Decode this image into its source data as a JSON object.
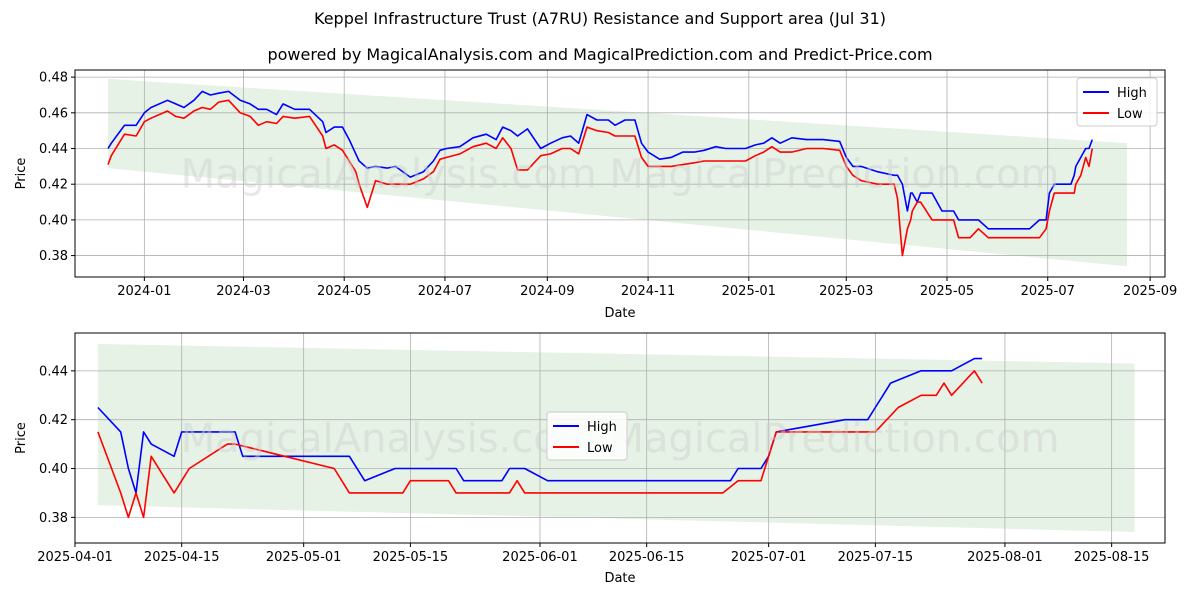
{
  "title": "Keppel Infrastructure Trust (A7RU) Resistance and Support area (Jul 31)",
  "subtitle": "powered by MagicalAnalysis.com and MagicalPrediction.com and Predict-Price.com",
  "watermark": "MagicalAnalysis.com    MagicalPrediction.com",
  "colors": {
    "high": "#0000ff",
    "low": "#ff0000",
    "band": "#cfe8cf"
  },
  "chart_data": [
    {
      "type": "line",
      "xlabel": "Date",
      "ylabel": "Price",
      "xlim": [
        "2023-11-20",
        "2025-09-10"
      ],
      "ylim": [
        0.368,
        0.484
      ],
      "xticks": [
        "2024-01-01",
        "2024-03-01",
        "2024-05-01",
        "2024-07-01",
        "2024-09-01",
        "2024-11-01",
        "2025-01-01",
        "2025-03-01",
        "2025-05-01",
        "2025-07-01",
        "2025-09-01"
      ],
      "xtick_labels": [
        "2024-01",
        "2024-03",
        "2024-05",
        "2024-07",
        "2024-09",
        "2024-11",
        "2025-01",
        "2025-03",
        "2025-05",
        "2025-07",
        "2025-09"
      ],
      "yticks": [
        0.38,
        0.4,
        0.42,
        0.44,
        0.46,
        0.48
      ],
      "ytick_labels": [
        "0.38",
        "0.40",
        "0.42",
        "0.44",
        "0.46",
        "0.48"
      ],
      "grid": true,
      "legend_position": "top-right",
      "band": {
        "x": [
          "2023-12-10",
          "2025-08-18"
        ],
        "upper": [
          0.479,
          0.443
        ],
        "lower": [
          0.429,
          0.374
        ]
      },
      "series": [
        {
          "name": "High",
          "x": [
            "2023-12-10",
            "2023-12-12",
            "2023-12-20",
            "2023-12-27",
            "2024-01-01",
            "2024-01-05",
            "2024-01-15",
            "2024-01-20",
            "2024-01-25",
            "2024-01-31",
            "2024-02-05",
            "2024-02-10",
            "2024-02-15",
            "2024-02-21",
            "2024-02-28",
            "2024-03-05",
            "2024-03-10",
            "2024-03-15",
            "2024-03-21",
            "2024-03-25",
            "2024-04-01",
            "2024-04-10",
            "2024-04-18",
            "2024-04-20",
            "2024-04-25",
            "2024-04-30",
            "2024-05-04",
            "2024-05-08",
            "2024-05-10",
            "2024-05-15",
            "2024-05-20",
            "2024-05-27",
            "2024-06-01",
            "2024-06-10",
            "2024-06-18",
            "2024-06-24",
            "2024-06-28",
            "2024-07-02",
            "2024-07-10",
            "2024-07-18",
            "2024-07-26",
            "2024-08-01",
            "2024-08-05",
            "2024-08-10",
            "2024-08-14",
            "2024-08-20",
            "2024-08-28",
            "2024-09-03",
            "2024-09-10",
            "2024-09-15",
            "2024-09-20",
            "2024-09-25",
            "2024-10-01",
            "2024-10-08",
            "2024-10-12",
            "2024-10-18",
            "2024-10-24",
            "2024-10-28",
            "2024-11-01",
            "2024-11-08",
            "2024-11-15",
            "2024-11-22",
            "2024-11-29",
            "2024-12-05",
            "2024-12-12",
            "2024-12-18",
            "2024-12-24",
            "2024-12-30",
            "2025-01-05",
            "2025-01-10",
            "2025-01-15",
            "2025-01-20",
            "2025-01-27",
            "2025-02-05",
            "2025-02-15",
            "2025-02-25",
            "2025-03-01",
            "2025-03-05",
            "2025-03-10",
            "2025-03-20",
            "2025-03-30",
            "2025-04-01",
            "2025-04-04",
            "2025-04-07",
            "2025-04-09",
            "2025-04-10",
            "2025-04-13",
            "2025-04-15",
            "2025-04-22",
            "2025-04-28",
            "2025-05-05",
            "2025-05-08",
            "2025-05-15",
            "2025-05-20",
            "2025-05-26",
            "2025-06-01",
            "2025-06-10",
            "2025-06-20",
            "2025-06-26",
            "2025-06-30",
            "2025-07-02",
            "2025-07-05",
            "2025-07-15",
            "2025-07-17",
            "2025-07-18",
            "2025-07-21",
            "2025-07-24",
            "2025-07-26",
            "2025-07-28"
          ],
          "values": [
            0.44,
            0.443,
            0.453,
            0.453,
            0.46,
            0.463,
            0.467,
            0.465,
            0.463,
            0.467,
            0.472,
            0.47,
            0.471,
            0.472,
            0.467,
            0.465,
            0.462,
            0.462,
            0.459,
            0.465,
            0.462,
            0.462,
            0.455,
            0.449,
            0.452,
            0.452,
            0.445,
            0.437,
            0.433,
            0.429,
            0.43,
            0.429,
            0.43,
            0.424,
            0.427,
            0.433,
            0.439,
            0.44,
            0.441,
            0.446,
            0.448,
            0.445,
            0.452,
            0.45,
            0.447,
            0.451,
            0.44,
            0.443,
            0.446,
            0.447,
            0.443,
            0.459,
            0.456,
            0.456,
            0.453,
            0.456,
            0.456,
            0.443,
            0.438,
            0.434,
            0.435,
            0.438,
            0.438,
            0.439,
            0.441,
            0.44,
            0.44,
            0.44,
            0.442,
            0.443,
            0.446,
            0.443,
            0.446,
            0.445,
            0.445,
            0.444,
            0.435,
            0.43,
            0.43,
            0.427,
            0.425,
            0.425,
            0.42,
            0.405,
            0.415,
            0.415,
            0.41,
            0.415,
            0.415,
            0.405,
            0.405,
            0.4,
            0.4,
            0.4,
            0.395,
            0.395,
            0.395,
            0.395,
            0.4,
            0.4,
            0.415,
            0.42,
            0.42,
            0.425,
            0.43,
            0.435,
            0.44,
            0.44,
            0.445
          ]
        },
        {
          "name": "Low",
          "x": [
            "2023-12-10",
            "2023-12-12",
            "2023-12-20",
            "2023-12-27",
            "2024-01-01",
            "2024-01-05",
            "2024-01-15",
            "2024-01-20",
            "2024-01-25",
            "2024-01-31",
            "2024-02-05",
            "2024-02-10",
            "2024-02-15",
            "2024-02-21",
            "2024-02-28",
            "2024-03-05",
            "2024-03-10",
            "2024-03-15",
            "2024-03-21",
            "2024-03-25",
            "2024-04-01",
            "2024-04-10",
            "2024-04-18",
            "2024-04-20",
            "2024-04-25",
            "2024-04-30",
            "2024-05-04",
            "2024-05-08",
            "2024-05-10",
            "2024-05-15",
            "2024-05-20",
            "2024-05-27",
            "2024-06-01",
            "2024-06-10",
            "2024-06-18",
            "2024-06-24",
            "2024-06-28",
            "2024-07-02",
            "2024-07-10",
            "2024-07-18",
            "2024-07-26",
            "2024-08-01",
            "2024-08-05",
            "2024-08-10",
            "2024-08-14",
            "2024-08-20",
            "2024-08-28",
            "2024-09-03",
            "2024-09-10",
            "2024-09-15",
            "2024-09-20",
            "2024-09-25",
            "2024-10-01",
            "2024-10-08",
            "2024-10-12",
            "2024-10-18",
            "2024-10-24",
            "2024-10-28",
            "2024-11-01",
            "2024-11-08",
            "2024-11-15",
            "2024-11-22",
            "2024-11-29",
            "2024-12-05",
            "2024-12-12",
            "2024-12-18",
            "2024-12-24",
            "2024-12-30",
            "2025-01-05",
            "2025-01-10",
            "2025-01-15",
            "2025-01-20",
            "2025-01-27",
            "2025-02-05",
            "2025-02-15",
            "2025-02-25",
            "2025-03-01",
            "2025-03-05",
            "2025-03-10",
            "2025-03-20",
            "2025-03-30",
            "2025-04-01",
            "2025-04-04",
            "2025-04-07",
            "2025-04-09",
            "2025-04-10",
            "2025-04-13",
            "2025-04-15",
            "2025-04-22",
            "2025-04-28",
            "2025-05-05",
            "2025-05-08",
            "2025-05-15",
            "2025-05-20",
            "2025-05-26",
            "2025-06-01",
            "2025-06-10",
            "2025-06-20",
            "2025-06-26",
            "2025-06-30",
            "2025-07-02",
            "2025-07-05",
            "2025-07-15",
            "2025-07-17",
            "2025-07-18",
            "2025-07-21",
            "2025-07-24",
            "2025-07-26",
            "2025-07-28"
          ],
          "values": [
            0.431,
            0.436,
            0.448,
            0.447,
            0.455,
            0.457,
            0.461,
            0.458,
            0.457,
            0.461,
            0.463,
            0.462,
            0.466,
            0.467,
            0.46,
            0.458,
            0.453,
            0.455,
            0.454,
            0.458,
            0.457,
            0.458,
            0.447,
            0.44,
            0.442,
            0.439,
            0.433,
            0.427,
            0.42,
            0.407,
            0.422,
            0.42,
            0.42,
            0.42,
            0.423,
            0.427,
            0.434,
            0.435,
            0.437,
            0.441,
            0.443,
            0.44,
            0.446,
            0.44,
            0.428,
            0.428,
            0.436,
            0.437,
            0.44,
            0.44,
            0.437,
            0.452,
            0.45,
            0.449,
            0.447,
            0.447,
            0.447,
            0.435,
            0.43,
            0.43,
            0.43,
            0.431,
            0.432,
            0.433,
            0.433,
            0.433,
            0.433,
            0.433,
            0.436,
            0.438,
            0.441,
            0.438,
            0.438,
            0.44,
            0.44,
            0.439,
            0.43,
            0.425,
            0.422,
            0.42,
            0.42,
            0.412,
            0.38,
            0.395,
            0.4,
            0.405,
            0.41,
            0.41,
            0.4,
            0.4,
            0.4,
            0.39,
            0.39,
            0.395,
            0.39,
            0.39,
            0.39,
            0.39,
            0.39,
            0.395,
            0.405,
            0.415,
            0.415,
            0.415,
            0.42,
            0.425,
            0.435,
            0.43,
            0.44
          ]
        }
      ]
    },
    {
      "type": "line",
      "xlabel": "Date",
      "ylabel": "Price",
      "xlim": [
        "2025-04-01",
        "2025-08-22"
      ],
      "ylim": [
        0.3695,
        0.4555
      ],
      "xticks": [
        "2025-04-01",
        "2025-04-15",
        "2025-05-01",
        "2025-05-15",
        "2025-06-01",
        "2025-06-15",
        "2025-07-01",
        "2025-07-15",
        "2025-08-01",
        "2025-08-15"
      ],
      "xtick_labels": [
        "2025-04-01",
        "2025-04-15",
        "2025-05-01",
        "2025-05-15",
        "2025-06-01",
        "2025-06-15",
        "2025-07-01",
        "2025-07-15",
        "2025-08-01",
        "2025-08-15"
      ],
      "yticks": [
        0.38,
        0.4,
        0.42,
        0.44
      ],
      "ytick_labels": [
        "0.38",
        "0.40",
        "0.42",
        "0.44"
      ],
      "grid": true,
      "legend_position": "center",
      "band": {
        "x": [
          "2025-04-04",
          "2025-08-18"
        ],
        "upper": [
          0.451,
          0.443
        ],
        "lower": [
          0.385,
          0.374
        ]
      },
      "series": [
        {
          "name": "High",
          "x": [
            "2025-04-04",
            "2025-04-07",
            "2025-04-08",
            "2025-04-09",
            "2025-04-10",
            "2025-04-11",
            "2025-04-14",
            "2025-04-15",
            "2025-04-22",
            "2025-04-23",
            "2025-05-07",
            "2025-05-09",
            "2025-05-13",
            "2025-05-21",
            "2025-05-22",
            "2025-05-27",
            "2025-05-28",
            "2025-05-30",
            "2025-06-02",
            "2025-06-26",
            "2025-06-27",
            "2025-06-30",
            "2025-07-01",
            "2025-07-02",
            "2025-07-11",
            "2025-07-14",
            "2025-07-15",
            "2025-07-16",
            "2025-07-17",
            "2025-07-21",
            "2025-07-25",
            "2025-07-28",
            "2025-07-29"
          ],
          "values": [
            0.425,
            0.415,
            0.4,
            0.39,
            0.415,
            0.41,
            0.405,
            0.415,
            0.415,
            0.405,
            0.405,
            0.395,
            0.4,
            0.4,
            0.395,
            0.395,
            0.4,
            0.4,
            0.395,
            0.395,
            0.4,
            0.4,
            0.405,
            0.415,
            0.42,
            0.42,
            0.425,
            0.43,
            0.435,
            0.44,
            0.44,
            0.445,
            0.445
          ]
        },
        {
          "name": "Low",
          "x": [
            "2025-04-04",
            "2025-04-07",
            "2025-04-08",
            "2025-04-09",
            "2025-04-10",
            "2025-04-11",
            "2025-04-14",
            "2025-04-15",
            "2025-04-16",
            "2025-04-21",
            "2025-04-22",
            "2025-05-05",
            "2025-05-07",
            "2025-05-14",
            "2025-05-15",
            "2025-05-20",
            "2025-05-21",
            "2025-05-28",
            "2025-05-29",
            "2025-05-30",
            "2025-06-25",
            "2025-06-27",
            "2025-06-30",
            "2025-07-01",
            "2025-07-02",
            "2025-07-15",
            "2025-07-18",
            "2025-07-21",
            "2025-07-23",
            "2025-07-24",
            "2025-07-25",
            "2025-07-28",
            "2025-07-29"
          ],
          "values": [
            0.415,
            0.39,
            0.38,
            0.39,
            0.38,
            0.405,
            0.39,
            0.395,
            0.4,
            0.41,
            0.41,
            0.4,
            0.39,
            0.39,
            0.395,
            0.395,
            0.39,
            0.39,
            0.395,
            0.39,
            0.39,
            0.395,
            0.395,
            0.405,
            0.415,
            0.415,
            0.425,
            0.43,
            0.43,
            0.435,
            0.43,
            0.44,
            0.435
          ]
        }
      ]
    }
  ]
}
